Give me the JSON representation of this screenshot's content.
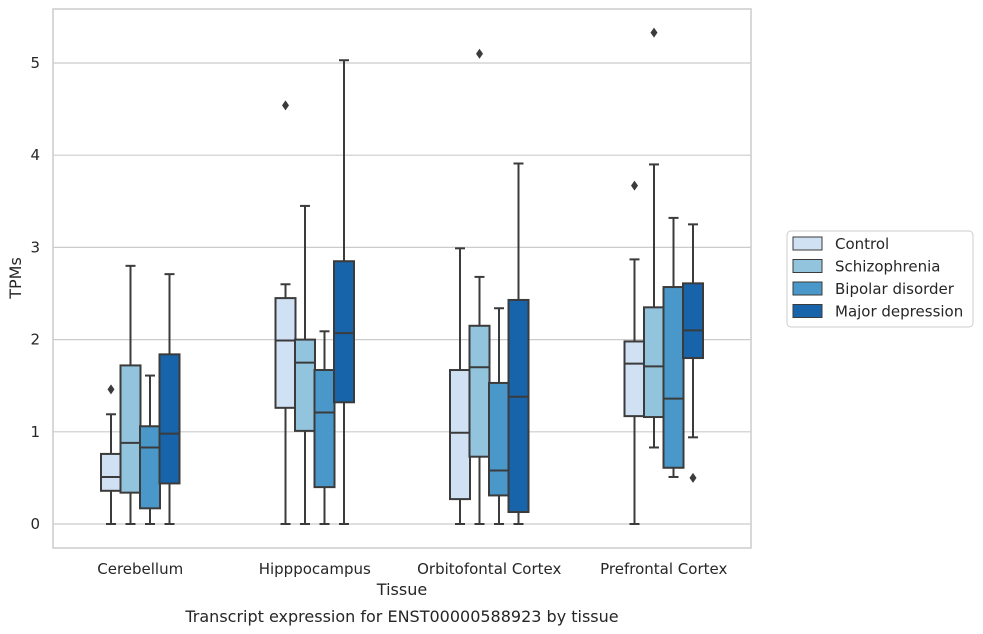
{
  "chart_data": {
    "type": "boxplot",
    "title": "",
    "caption": "Transcript expression for ENST00000588923 by tissue",
    "xlabel": "Tissue",
    "ylabel": "TPMs",
    "ylim": [
      -0.25,
      5.6
    ],
    "yticks": [
      0,
      1,
      2,
      3,
      4,
      5
    ],
    "grid": "horizontal",
    "legend_position": "right",
    "categories": [
      "Cerebellum",
      "Hipppocampus",
      "Orbitofontal Cortex",
      "Prefrontal Cortex"
    ],
    "series": [
      {
        "name": "Control",
        "color": "#cfe1f2",
        "boxes": [
          {
            "whislo": 0.0,
            "q1": 0.36,
            "med": 0.51,
            "q3": 0.76,
            "whishi": 1.19,
            "fliers": [
              1.46
            ]
          },
          {
            "whislo": 0.0,
            "q1": 1.26,
            "med": 1.99,
            "q3": 2.45,
            "whishi": 2.6,
            "fliers": [
              4.54
            ]
          },
          {
            "whislo": 0.0,
            "q1": 0.27,
            "med": 0.99,
            "q3": 1.67,
            "whishi": 2.99,
            "fliers": []
          },
          {
            "whislo": 0.0,
            "q1": 1.17,
            "med": 1.74,
            "q3": 1.98,
            "whishi": 2.87,
            "fliers": [
              3.67
            ]
          }
        ]
      },
      {
        "name": "Schizophrenia",
        "color": "#93c4de",
        "boxes": [
          {
            "whislo": 0.0,
            "q1": 0.34,
            "med": 0.88,
            "q3": 1.72,
            "whishi": 2.8,
            "fliers": []
          },
          {
            "whislo": 0.0,
            "q1": 1.01,
            "med": 1.75,
            "q3": 2.0,
            "whishi": 3.45,
            "fliers": []
          },
          {
            "whislo": 0.0,
            "q1": 0.73,
            "med": 1.7,
            "q3": 2.15,
            "whishi": 2.68,
            "fliers": [
              5.1
            ]
          },
          {
            "whislo": 0.83,
            "q1": 1.16,
            "med": 1.71,
            "q3": 2.35,
            "whishi": 3.9,
            "fliers": [
              5.33
            ]
          }
        ]
      },
      {
        "name": "Bipolar disorder",
        "color": "#4a98c9",
        "boxes": [
          {
            "whislo": 0.0,
            "q1": 0.17,
            "med": 0.83,
            "q3": 1.06,
            "whishi": 1.61,
            "fliers": []
          },
          {
            "whislo": 0.0,
            "q1": 0.4,
            "med": 1.21,
            "q3": 1.67,
            "whishi": 2.09,
            "fliers": []
          },
          {
            "whislo": 0.0,
            "q1": 0.31,
            "med": 0.58,
            "q3": 1.53,
            "whishi": 2.34,
            "fliers": []
          },
          {
            "whislo": 0.51,
            "q1": 0.61,
            "med": 1.36,
            "q3": 2.57,
            "whishi": 3.32,
            "fliers": []
          }
        ]
      },
      {
        "name": "Major depression",
        "color": "#1764ab",
        "boxes": [
          {
            "whislo": 0.0,
            "q1": 0.44,
            "med": 0.98,
            "q3": 1.84,
            "whishi": 2.71,
            "fliers": []
          },
          {
            "whislo": 0.0,
            "q1": 1.32,
            "med": 2.07,
            "q3": 2.85,
            "whishi": 5.03,
            "fliers": []
          },
          {
            "whislo": 0.0,
            "q1": 0.13,
            "med": 1.38,
            "q3": 2.43,
            "whishi": 3.91,
            "fliers": []
          },
          {
            "whislo": 0.94,
            "q1": 1.8,
            "med": 2.1,
            "q3": 2.61,
            "whishi": 3.25,
            "fliers": [
              0.5
            ]
          }
        ]
      }
    ]
  },
  "style": {
    "box_edge_color": "#3b3b3b",
    "grid_color": "#cccccc",
    "frame_color": "#cccccc"
  }
}
